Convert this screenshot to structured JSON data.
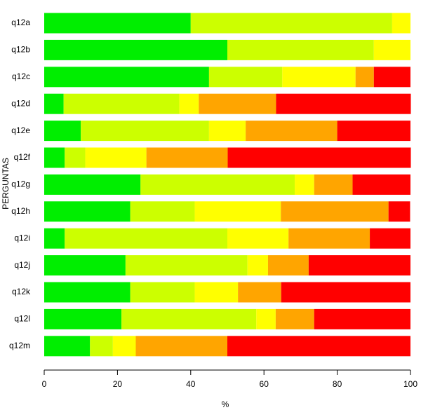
{
  "chart_data": {
    "type": "stacked-barh",
    "xlabel": "%",
    "ylabel": "PERGUNTAS",
    "categories": [
      "q12a",
      "q12b",
      "q12c",
      "q12d",
      "q12e",
      "q12f",
      "q12g",
      "q12h",
      "q12i",
      "q12j",
      "q12k",
      "q12l",
      "q12m"
    ],
    "series": [
      {
        "color": "#00ee00",
        "values": [
          40,
          50,
          45,
          5.3,
          10,
          5.6,
          26.3,
          23.5,
          5.6,
          22.2,
          23.5,
          21.1,
          12.5
        ]
      },
      {
        "color": "#ccff00",
        "values": [
          55,
          40,
          20,
          31.6,
          35,
          5.6,
          42.1,
          17.6,
          44.4,
          33.3,
          17.6,
          36.8,
          6.25
        ]
      },
      {
        "color": "#ffff00",
        "values": [
          5,
          10,
          20,
          5.3,
          10,
          16.7,
          5.3,
          23.5,
          16.7,
          5.6,
          11.8,
          5.3,
          6.25
        ]
      },
      {
        "color": "#ffa500",
        "values": [
          0,
          0,
          5,
          21.1,
          25,
          22.2,
          10.5,
          29.4,
          22.2,
          11.1,
          11.8,
          10.5,
          25
        ]
      },
      {
        "color": "#ff0000",
        "values": [
          0,
          0,
          10,
          36.8,
          20,
          50,
          15.8,
          5.9,
          11.1,
          27.8,
          35.3,
          26.3,
          50
        ]
      }
    ],
    "xlim": [
      0,
      100
    ],
    "xticks": [
      0,
      20,
      40,
      60,
      80,
      100
    ]
  }
}
